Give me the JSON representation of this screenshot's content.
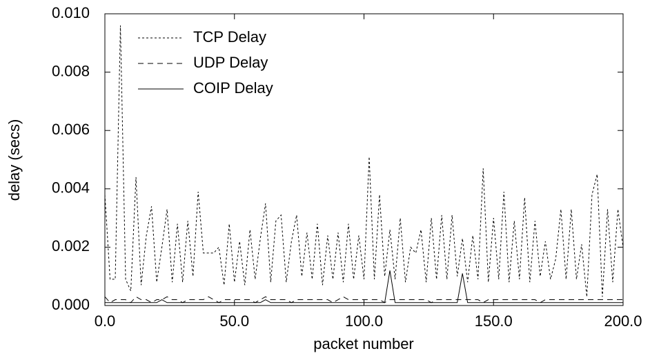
{
  "chart_data": {
    "type": "line",
    "xlabel": "packet number",
    "ylabel": "delay (secs)",
    "xlim": [
      0,
      200
    ],
    "ylim": [
      0,
      0.01
    ],
    "xticks": [
      {
        "value": 0,
        "label": "0.0"
      },
      {
        "value": 50,
        "label": "50.0"
      },
      {
        "value": 100,
        "label": "100.0"
      },
      {
        "value": 150,
        "label": "150.0"
      },
      {
        "value": 200,
        "label": "200.0"
      }
    ],
    "yticks": [
      {
        "value": 0,
        "label": "0.000"
      },
      {
        "value": 0.002,
        "label": "0.002"
      },
      {
        "value": 0.004,
        "label": "0.004"
      },
      {
        "value": 0.006,
        "label": "0.006"
      },
      {
        "value": 0.008,
        "label": "0.008"
      },
      {
        "value": 0.01,
        "label": "0.010"
      }
    ],
    "legend": "upper left",
    "x": [
      0,
      2,
      4,
      6,
      8,
      10,
      12,
      14,
      16,
      18,
      20,
      22,
      24,
      26,
      28,
      30,
      32,
      34,
      36,
      38,
      40,
      42,
      44,
      46,
      48,
      50,
      52,
      54,
      56,
      58,
      60,
      62,
      64,
      66,
      68,
      70,
      72,
      74,
      76,
      78,
      80,
      82,
      84,
      86,
      88,
      90,
      92,
      94,
      96,
      98,
      100,
      102,
      104,
      106,
      108,
      110,
      112,
      114,
      116,
      118,
      120,
      122,
      124,
      126,
      128,
      130,
      132,
      134,
      136,
      138,
      140,
      142,
      144,
      146,
      148,
      150,
      152,
      154,
      156,
      158,
      160,
      162,
      164,
      166,
      168,
      170,
      172,
      174,
      176,
      178,
      180,
      182,
      184,
      186,
      188,
      190,
      192,
      194,
      196,
      198,
      200
    ],
    "series": [
      {
        "name": "TCP Delay",
        "color": "#000000",
        "dash": "3,3",
        "values": [
          0.0038,
          0.0009,
          0.0009,
          0.0096,
          0.0009,
          0.0005,
          0.0044,
          0.0007,
          0.0024,
          0.0034,
          0.0008,
          0.002,
          0.0033,
          0.0008,
          0.0028,
          0.0008,
          0.0029,
          0.001,
          0.0039,
          0.0018,
          0.0018,
          0.0018,
          0.002,
          0.0007,
          0.0028,
          0.0008,
          0.0022,
          0.0007,
          0.0026,
          0.0009,
          0.0023,
          0.0035,
          0.0008,
          0.0029,
          0.0031,
          0.0008,
          0.0022,
          0.0031,
          0.001,
          0.0025,
          0.0009,
          0.0028,
          0.0007,
          0.0024,
          0.0009,
          0.0025,
          0.0008,
          0.0028,
          0.0009,
          0.0024,
          0.0009,
          0.0051,
          0.0009,
          0.0038,
          0.001,
          0.0026,
          0.0009,
          0.003,
          0.0008,
          0.002,
          0.0018,
          0.0026,
          0.0008,
          0.003,
          0.0009,
          0.0031,
          0.0009,
          0.0031,
          0.001,
          0.0023,
          0.0008,
          0.0024,
          0.0009,
          0.0047,
          0.0008,
          0.003,
          0.0009,
          0.0039,
          0.0008,
          0.0029,
          0.0009,
          0.0037,
          0.0008,
          0.0029,
          0.001,
          0.0022,
          0.0009,
          0.0016,
          0.0033,
          0.0009,
          0.0033,
          0.0009,
          0.0021,
          0.0003,
          0.0038,
          0.0045,
          0.0003,
          0.0033,
          0.0008,
          0.0033,
          0.002
        ]
      },
      {
        "name": "UDP Delay",
        "color": "#000000",
        "dash": "8,6",
        "values": [
          0.0003,
          0.0001,
          0.0002,
          0.0002,
          0.0002,
          0.0001,
          0.0003,
          0.0002,
          0.0002,
          0.0001,
          0.0002,
          0.0002,
          0.0003,
          0.0002,
          0.0002,
          0.0001,
          0.0002,
          0.0002,
          0.0002,
          0.0002,
          0.0003,
          0.0002,
          0.0001,
          0.0002,
          0.0002,
          0.0002,
          0.0002,
          0.0002,
          0.0002,
          0.0001,
          0.0002,
          0.0003,
          0.0002,
          0.0002,
          0.0002,
          0.0002,
          0.0001,
          0.0002,
          0.0002,
          0.0002,
          0.0002,
          0.0002,
          0.0002,
          0.0002,
          0.0001,
          0.0002,
          0.0003,
          0.0002,
          0.0002,
          0.0002,
          0.0002,
          0.0002,
          0.0002,
          0.0002,
          0.0001,
          0.0002,
          0.0002,
          0.0002,
          0.0002,
          0.0002,
          0.0002,
          0.0002,
          0.0002,
          0.0001,
          0.0002,
          0.0002,
          0.0002,
          0.0002,
          0.0002,
          0.0002,
          0.0002,
          0.0002,
          0.0002,
          0.0001,
          0.0002,
          0.0002,
          0.0002,
          0.0002,
          0.0002,
          0.0002,
          0.0002,
          0.0002,
          0.0002,
          0.0002,
          0.0001,
          0.0002,
          0.0002,
          0.0002,
          0.0002,
          0.0002,
          0.0002,
          0.0002,
          0.0002,
          0.0002,
          0.0002,
          0.0002,
          0.0002,
          0.0002,
          0.0002,
          0.0002,
          0.0002
        ]
      },
      {
        "name": "COIP Delay",
        "color": "#000000",
        "dash": "",
        "values": [
          0.0001,
          0.0001,
          0.0001,
          0.0001,
          0.0001,
          0.0001,
          0.0001,
          0.0001,
          0.0001,
          0.0001,
          0.0001,
          0.0002,
          0.0001,
          0.0001,
          0.0001,
          0.0001,
          0.0001,
          0.0001,
          0.0001,
          0.0001,
          0.0001,
          0.0001,
          0.0001,
          0.0001,
          0.0001,
          0.0001,
          0.0001,
          0.0001,
          0.0001,
          0.0001,
          0.0001,
          0.0002,
          0.0001,
          0.0001,
          0.0001,
          0.0001,
          0.0001,
          0.0001,
          0.0001,
          0.0001,
          0.0001,
          0.0001,
          0.0001,
          0.0001,
          0.0001,
          0.0001,
          0.0001,
          0.0001,
          0.0001,
          0.0001,
          0.0001,
          0.0001,
          0.0001,
          0.0001,
          0.0001,
          0.0012,
          0.0001,
          0.0001,
          0.0001,
          0.0001,
          0.0001,
          0.0001,
          0.0001,
          0.0001,
          0.0001,
          0.0001,
          0.0001,
          0.0001,
          0.0001,
          0.0011,
          0.0001,
          0.0001,
          0.0001,
          0.0001,
          0.0001,
          0.0001,
          0.0001,
          0.0001,
          0.0001,
          0.0001,
          0.0001,
          0.0001,
          0.0001,
          0.0001,
          0.0001,
          0.0001,
          0.0001,
          0.0001,
          0.0001,
          0.0001,
          0.0001,
          0.0001,
          0.0001,
          0.0001,
          0.0001,
          0.0001,
          0.0001,
          0.0001,
          0.0001,
          0.0001,
          0.0001
        ]
      }
    ]
  }
}
